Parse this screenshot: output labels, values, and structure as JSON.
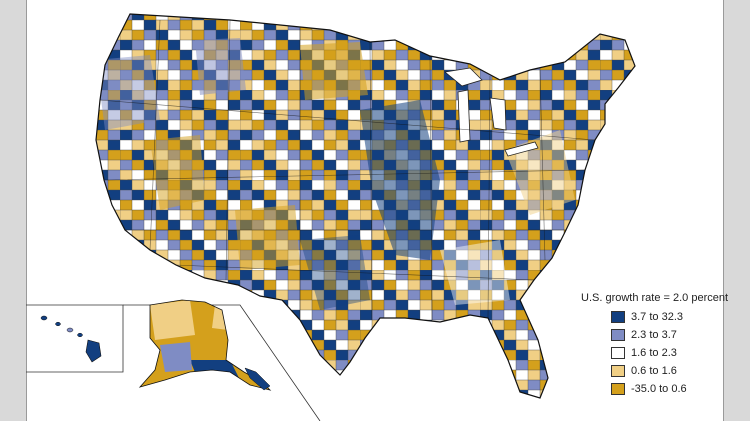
{
  "legend": {
    "title": "U.S. growth rate = 2.0 percent",
    "items": [
      {
        "label": "3.7 to 32.3",
        "color": "#123f80"
      },
      {
        "label": "2.3 to 3.7",
        "color": "#7f8cc4"
      },
      {
        "label": "1.6 to 2.3",
        "color": "#ffffff"
      },
      {
        "label": "0.6 to 1.6",
        "color": "#f0cf85"
      },
      {
        "label": "-35.0 to 0.6",
        "color": "#d4a01c"
      }
    ]
  }
}
